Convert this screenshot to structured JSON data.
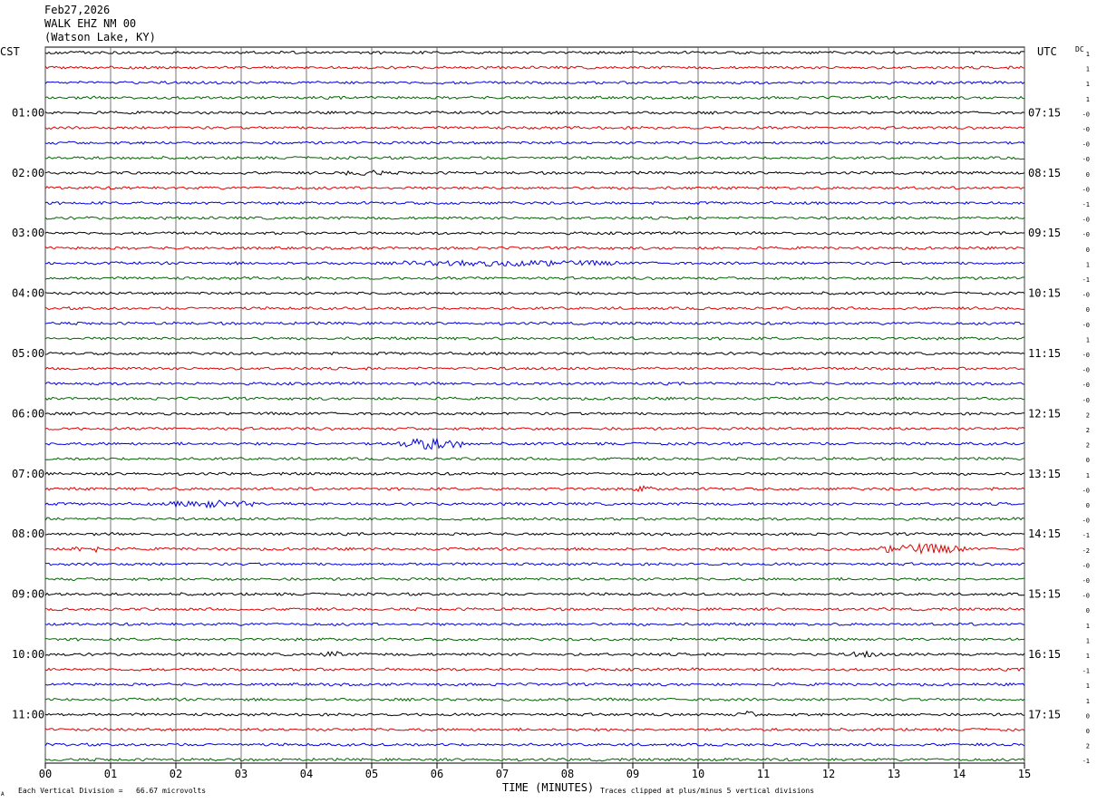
{
  "header": {
    "date": "Feb27,2026",
    "station": "WALK EHZ NM 00",
    "location": "(Watson Lake, KY)"
  },
  "left_zone_label": "CST",
  "right_zone_label": "UTC",
  "dc_label": "DC",
  "footer": {
    "scale_note": "Each Vertical Division =   66.67 microvolts",
    "axis_title": "TIME (MINUTES)",
    "clip_note": "Traces clipped at plus/minus 5 vertical divisions",
    "corner_mark": "A"
  },
  "colors": {
    "trace_cycle": [
      "#000000",
      "#e00000",
      "#0000e0",
      "#006400"
    ],
    "grid": "#000000",
    "background": "#ffffff"
  },
  "chart_data": {
    "type": "line",
    "title": "WALK EHZ NM 00",
    "xlabel": "TIME (MINUTES)",
    "xlim": [
      0,
      15
    ],
    "x_ticks": [
      "00",
      "01",
      "02",
      "03",
      "04",
      "05",
      "06",
      "07",
      "08",
      "09",
      "10",
      "11",
      "12",
      "13",
      "14",
      "15"
    ],
    "minutes_per_line": 15,
    "line_count": 48,
    "left_hour_labels": [
      {
        "line": 4,
        "label": "01:00"
      },
      {
        "line": 8,
        "label": "02:00"
      },
      {
        "line": 12,
        "label": "03:00"
      },
      {
        "line": 16,
        "label": "04:00"
      },
      {
        "line": 20,
        "label": "05:00"
      },
      {
        "line": 24,
        "label": "06:00"
      },
      {
        "line": 28,
        "label": "07:00"
      },
      {
        "line": 32,
        "label": "08:00"
      },
      {
        "line": 36,
        "label": "09:00"
      },
      {
        "line": 40,
        "label": "10:00"
      },
      {
        "line": 44,
        "label": "11:00"
      }
    ],
    "right_hour_labels": [
      {
        "line": 4,
        "label": "07:15"
      },
      {
        "line": 8,
        "label": "08:15"
      },
      {
        "line": 12,
        "label": "09:15"
      },
      {
        "line": 16,
        "label": "10:15"
      },
      {
        "line": 20,
        "label": "11:15"
      },
      {
        "line": 24,
        "label": "12:15"
      },
      {
        "line": 28,
        "label": "13:15"
      },
      {
        "line": 32,
        "label": "14:15"
      },
      {
        "line": 36,
        "label": "15:15"
      },
      {
        "line": 40,
        "label": "16:15"
      },
      {
        "line": 44,
        "label": "17:15"
      }
    ],
    "dc_offsets": [
      "1",
      "1",
      "1",
      "1",
      "-0",
      "-0",
      "-0",
      "-0",
      "0",
      "-0",
      "-1",
      "-0",
      "-0",
      "0",
      "1",
      "-1",
      "-0",
      "0",
      "-0",
      "1",
      "-0",
      "-0",
      "-0",
      "-0",
      "2",
      "2",
      "2",
      "0",
      "1",
      "-0",
      "0",
      "-0",
      "-1",
      "-2",
      "-0",
      "-0",
      "-0",
      "0",
      "1",
      "1",
      "1",
      "-1",
      "1",
      "1",
      "0",
      "0",
      "2",
      "-1"
    ],
    "events": [
      {
        "line": 26,
        "start_min": 5.4,
        "end_min": 6.4,
        "amplitude": 3.2
      },
      {
        "line": 30,
        "start_min": 1.9,
        "end_min": 3.2,
        "amplitude": 1.8
      },
      {
        "line": 33,
        "start_min": 0.4,
        "end_min": 1.0,
        "amplitude": 1.6
      },
      {
        "line": 33,
        "start_min": 12.8,
        "end_min": 14.1,
        "amplitude": 2.8
      },
      {
        "line": 14,
        "start_min": 5.4,
        "end_min": 8.8,
        "amplitude": 1.3
      },
      {
        "line": 40,
        "start_min": 4.2,
        "end_min": 4.6,
        "amplitude": 1.4
      },
      {
        "line": 40,
        "start_min": 12.3,
        "end_min": 12.8,
        "amplitude": 1.4
      },
      {
        "line": 44,
        "start_min": 10.6,
        "end_min": 10.9,
        "amplitude": 1.5
      },
      {
        "line": 8,
        "start_min": 4.6,
        "end_min": 5.2,
        "amplitude": 1.3
      },
      {
        "line": 29,
        "start_min": 9.0,
        "end_min": 9.3,
        "amplitude": 1.3
      }
    ]
  }
}
